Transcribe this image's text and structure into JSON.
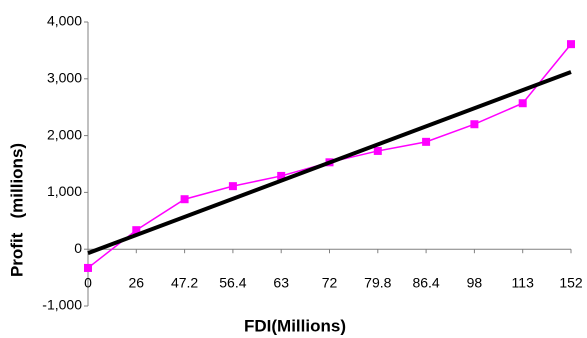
{
  "chart_data": {
    "type": "line",
    "x_label": "FDI(Millions)",
    "y_label": "Profit   (millions)",
    "categories": [
      "0",
      "26",
      "47.2",
      "56.4",
      "63",
      "72",
      "79.8",
      "86.4",
      "98",
      "113",
      "152"
    ],
    "series": [
      {
        "name": "Profit",
        "color": "#ff00ff",
        "values": [
          -330,
          335,
          880,
          1110,
          1290,
          1530,
          1730,
          1890,
          2200,
          2570,
          3610
        ]
      }
    ],
    "trendline": {
      "color": "#000000",
      "values": [
        -70,
        3120
      ]
    },
    "ylim": [
      -1000,
      4000
    ],
    "yticks": [
      {
        "value": -1000,
        "label": "-1,000"
      },
      0,
      {
        "value": 1000,
        "label": "1,000"
      },
      {
        "value": 2000,
        "label": "2,000"
      },
      {
        "value": 3000,
        "label": "3,000"
      },
      {
        "value": 4000,
        "label": "4,000"
      }
    ],
    "grid": false,
    "legend": false
  }
}
